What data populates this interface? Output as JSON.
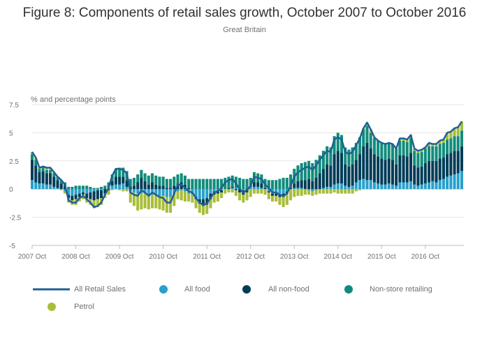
{
  "header": {
    "title": "Figure 8: Components of retail sales growth, October 2007 to October 2016",
    "subtitle": "Great Britain"
  },
  "colors": {
    "all_retail": "#206095",
    "all_food": "#27a0cc",
    "all_non_food": "#003c57",
    "non_store": "#118c7b",
    "petrol": "#a8bd3a",
    "grid": "#e6e6e6",
    "axis_text": "#707071"
  },
  "chart_data": {
    "type": "bar",
    "stacked": true,
    "title": "Figure 8: Components of retail sales growth, October 2007 to October 2016",
    "subtitle": "Great Britain",
    "ylabel": "% and percentage points",
    "ylim": [
      -5,
      7.5
    ],
    "yticks": [
      "7.5",
      "5",
      "2.5",
      "0",
      "-2.5",
      "-5"
    ],
    "xticks": [
      "2007 Oct",
      "2008 Oct",
      "2009 Oct",
      "2010 Oct",
      "2011 Oct",
      "2012 Oct",
      "2013 Oct",
      "2014 Oct",
      "2015 Oct",
      "2016 Oct"
    ],
    "x_start": "2007-10",
    "x_end": "2016-10",
    "grid": true,
    "legend_position": "bottom",
    "series": [
      {
        "name": "All Retail Sales",
        "kind": "line",
        "color": "#206095",
        "values": [
          3.3,
          2.8,
          1.9,
          2.0,
          1.9,
          1.9,
          1.5,
          1.1,
          0.8,
          0.4,
          -1.0,
          -1.2,
          -1.2,
          -0.8,
          -0.6,
          -0.9,
          -1.2,
          -1.6,
          -1.5,
          -1.2,
          -0.5,
          0.1,
          1.2,
          1.8,
          1.8,
          1.7,
          1.4,
          -0.3,
          -0.5,
          -0.6,
          -0.1,
          -0.3,
          -0.6,
          -0.3,
          -0.5,
          -0.7,
          -0.8,
          -1.2,
          -1.2,
          -0.4,
          0.4,
          0.4,
          0.1,
          -0.2,
          -0.3,
          -0.8,
          -1.2,
          -1.4,
          -1.3,
          -0.8,
          -0.3,
          -0.2,
          0.1,
          0.6,
          0.8,
          0.9,
          0.5,
          0.0,
          -0.3,
          -0.1,
          0.3,
          1.1,
          1.0,
          0.9,
          0.4,
          0.1,
          -0.3,
          -0.3,
          -0.5,
          -0.6,
          -0.4,
          0.3,
          1.1,
          1.5,
          1.7,
          1.9,
          2.0,
          1.7,
          2.1,
          2.6,
          3.0,
          3.4,
          3.3,
          4.4,
          4.6,
          4.4,
          3.3,
          3.1,
          3.3,
          3.9,
          4.5,
          5.4,
          5.9,
          5.3,
          4.6,
          4.3,
          4.1,
          4.0,
          4.1,
          4.0,
          3.6,
          4.5,
          4.5,
          4.4,
          4.8,
          3.6,
          3.4,
          3.5,
          3.7,
          4.1,
          4.0,
          4.0,
          4.3,
          4.4,
          5.0,
          5.1,
          5.4,
          5.5,
          6.0
        ]
      },
      {
        "name": "All food",
        "color": "#27a0cc",
        "values": [
          0.8,
          0.6,
          0.5,
          0.5,
          0.4,
          0.4,
          0.2,
          0.1,
          0.0,
          -0.2,
          -0.5,
          -0.6,
          -0.5,
          -0.4,
          -0.3,
          -0.4,
          -0.3,
          -0.2,
          -0.1,
          -0.1,
          0.0,
          0.2,
          0.3,
          0.4,
          0.4,
          0.5,
          0.2,
          -0.2,
          -0.3,
          -0.4,
          -0.4,
          -0.4,
          -0.5,
          -0.5,
          -0.6,
          -0.6,
          -0.6,
          -0.7,
          -0.7,
          -0.5,
          -0.2,
          -0.1,
          -0.2,
          -0.4,
          -0.5,
          -0.7,
          -0.9,
          -0.9,
          -0.8,
          -0.4,
          -0.2,
          -0.1,
          -0.1,
          0.0,
          0.0,
          0.1,
          0.1,
          0.0,
          -0.1,
          0.0,
          0.1,
          0.2,
          0.2,
          0.1,
          0.0,
          -0.2,
          -0.4,
          -0.4,
          -0.5,
          -0.4,
          -0.2,
          0.0,
          0.1,
          0.1,
          0.1,
          0.0,
          -0.1,
          -0.2,
          -0.1,
          0.0,
          0.1,
          0.2,
          0.2,
          0.4,
          0.5,
          0.5,
          0.3,
          0.2,
          0.3,
          0.6,
          0.8,
          0.9,
          0.8,
          0.8,
          0.6,
          0.5,
          0.4,
          0.4,
          0.5,
          0.4,
          0.3,
          0.6,
          0.6,
          0.6,
          0.7,
          0.4,
          0.3,
          0.4,
          0.5,
          0.6,
          0.7,
          0.6,
          0.8,
          0.9,
          1.1,
          1.2,
          1.3,
          1.4,
          1.6
        ]
      },
      {
        "name": "All non-food",
        "color": "#003c57",
        "values": [
          1.8,
          1.5,
          1.0,
          1.1,
          1.0,
          1.0,
          0.9,
          0.7,
          0.5,
          0.3,
          -0.3,
          -0.4,
          -0.4,
          -0.3,
          -0.2,
          -0.4,
          -0.6,
          -0.8,
          -0.8,
          -0.7,
          -0.4,
          -0.1,
          0.4,
          0.7,
          0.7,
          0.6,
          0.6,
          0.2,
          0.3,
          0.6,
          1.0,
          0.7,
          0.4,
          0.6,
          0.4,
          0.3,
          0.3,
          0.1,
          0.1,
          0.3,
          0.5,
          0.6,
          0.4,
          0.1,
          0.0,
          -0.2,
          -0.4,
          -0.6,
          -0.6,
          -0.5,
          -0.3,
          -0.3,
          -0.2,
          0.0,
          0.1,
          0.1,
          -0.1,
          -0.3,
          -0.4,
          -0.3,
          0.0,
          0.4,
          0.4,
          0.4,
          0.1,
          -0.1,
          -0.2,
          -0.2,
          -0.2,
          -0.3,
          -0.2,
          0.1,
          0.4,
          0.6,
          0.7,
          0.8,
          0.9,
          0.7,
          1.0,
          1.4,
          1.7,
          2.0,
          1.9,
          2.7,
          2.9,
          2.7,
          1.9,
          1.8,
          1.9,
          2.0,
          2.3,
          2.9,
          3.3,
          2.8,
          2.5,
          2.4,
          2.3,
          2.2,
          2.2,
          2.2,
          1.9,
          2.4,
          2.4,
          2.3,
          2.5,
          1.7,
          1.6,
          1.6,
          1.8,
          1.9,
          1.8,
          1.9,
          1.9,
          1.9,
          2.0,
          2.0,
          2.1,
          2.0,
          2.2
        ]
      },
      {
        "name": "Non-store retailing",
        "color": "#118c7b",
        "values": [
          0.5,
          0.5,
          0.3,
          0.3,
          0.3,
          0.3,
          0.3,
          0.3,
          0.3,
          0.3,
          0.2,
          0.2,
          0.3,
          0.3,
          0.3,
          0.3,
          0.2,
          0.1,
          0.1,
          0.2,
          0.3,
          0.4,
          0.6,
          0.7,
          0.8,
          0.8,
          0.8,
          0.7,
          0.7,
          0.7,
          0.7,
          0.7,
          0.8,
          0.8,
          0.8,
          0.8,
          0.8,
          0.8,
          0.8,
          0.8,
          0.8,
          0.8,
          0.8,
          0.8,
          0.9,
          0.9,
          0.9,
          0.9,
          0.9,
          0.9,
          0.9,
          0.9,
          0.9,
          1.0,
          1.0,
          1.0,
          1.0,
          1.0,
          0.9,
          0.9,
          0.9,
          0.9,
          0.8,
          0.8,
          0.8,
          0.8,
          0.8,
          0.8,
          0.9,
          1.0,
          1.0,
          1.2,
          1.3,
          1.4,
          1.5,
          1.6,
          1.6,
          1.6,
          1.6,
          1.6,
          1.6,
          1.6,
          1.6,
          1.6,
          1.6,
          1.6,
          1.5,
          1.5,
          1.5,
          1.5,
          1.5,
          1.5,
          1.5,
          1.4,
          1.4,
          1.4,
          1.4,
          1.4,
          1.4,
          1.4,
          1.4,
          1.3,
          1.3,
          1.3,
          1.3,
          1.3,
          1.3,
          1.3,
          1.3,
          1.3,
          1.3,
          1.3,
          1.3,
          1.3,
          1.3,
          1.3,
          1.3,
          1.3,
          1.4
        ]
      },
      {
        "name": "Petrol",
        "color": "#a8bd3a",
        "values": [
          0.2,
          0.2,
          0.1,
          0.1,
          0.2,
          0.2,
          0.1,
          0.0,
          -0.1,
          -0.2,
          -0.4,
          -0.4,
          -0.5,
          -0.4,
          -0.4,
          -0.4,
          -0.5,
          -0.7,
          -0.7,
          -0.6,
          -0.4,
          -0.4,
          -0.1,
          0.0,
          -0.1,
          -0.2,
          -0.2,
          -1.0,
          -1.2,
          -1.5,
          -1.4,
          -1.3,
          -1.3,
          -1.2,
          -1.1,
          -1.2,
          -1.3,
          -1.4,
          -1.4,
          -1.0,
          -0.7,
          -0.9,
          -0.9,
          -0.7,
          -0.7,
          -0.8,
          -0.8,
          -0.8,
          -0.8,
          -0.8,
          -0.7,
          -0.7,
          -0.5,
          -0.4,
          -0.3,
          -0.3,
          -0.5,
          -0.7,
          -0.7,
          -0.7,
          -0.7,
          -0.4,
          -0.4,
          -0.4,
          -0.5,
          -0.6,
          -0.5,
          -0.5,
          -0.7,
          -0.9,
          -1.0,
          -1.0,
          -0.7,
          -0.6,
          -0.6,
          -0.5,
          -0.4,
          -0.4,
          -0.4,
          -0.4,
          -0.4,
          -0.4,
          -0.4,
          -0.3,
          -0.4,
          -0.4,
          -0.4,
          -0.4,
          -0.4,
          -0.2,
          -0.1,
          0.1,
          0.3,
          0.3,
          0.1,
          0.0,
          0.0,
          0.0,
          0.0,
          0.0,
          0.0,
          0.2,
          0.2,
          0.2,
          0.3,
          0.2,
          0.2,
          0.2,
          0.1,
          0.3,
          0.2,
          0.2,
          0.3,
          0.3,
          0.6,
          0.6,
          0.7,
          0.8,
          0.8
        ]
      }
    ]
  }
}
